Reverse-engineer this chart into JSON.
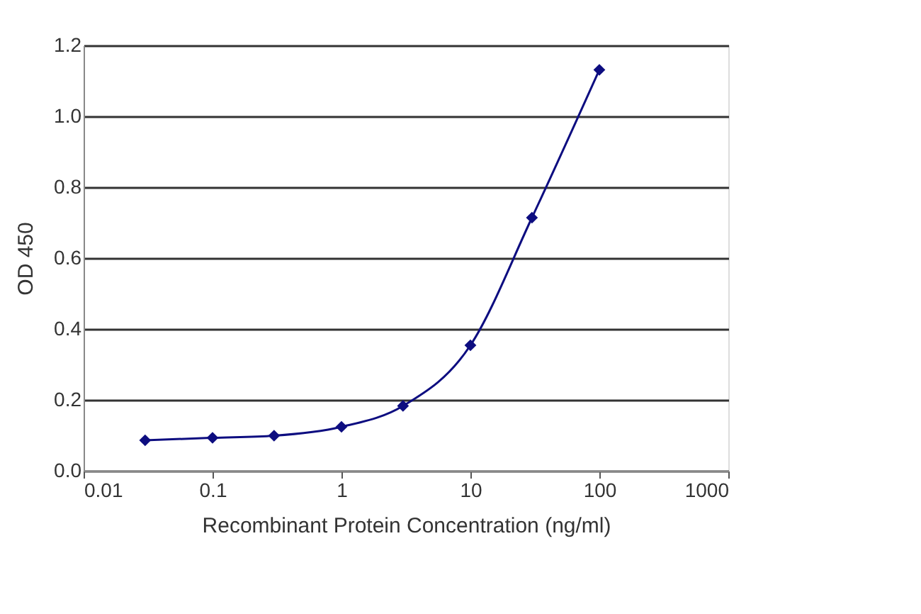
{
  "chart_data": {
    "type": "line",
    "xlabel": "Recombinant Protein Concentration (ng/ml)",
    "ylabel": "OD 450",
    "x": [
      0.03,
      0.1,
      0.3,
      1,
      3,
      10,
      30,
      100
    ],
    "series": [
      {
        "color": "#0d0d80",
        "values": [
          0.086,
          0.093,
          0.099,
          0.124,
          0.183,
          0.354,
          0.714,
          1.131
        ]
      }
    ],
    "log": "x",
    "xlim": [
      0.01,
      1000
    ],
    "xticks": [
      0.01,
      0.1,
      1,
      10,
      100,
      1000
    ],
    "ylim": [
      0,
      1.2
    ],
    "yticks": [
      {
        "value": 0,
        "label": "0.0"
      },
      {
        "value": 0.2,
        "label": "0.2"
      },
      {
        "value": 0.4,
        "label": "0.4"
      },
      {
        "value": 0.6,
        "label": "0.6"
      },
      {
        "value": 0.8,
        "label": "0.8"
      },
      {
        "value": 1.0,
        "label": "1.0"
      },
      {
        "value": 1.2,
        "label": "1.2"
      }
    ],
    "grid": "y",
    "marker": "diamond",
    "line_style": "solid"
  }
}
